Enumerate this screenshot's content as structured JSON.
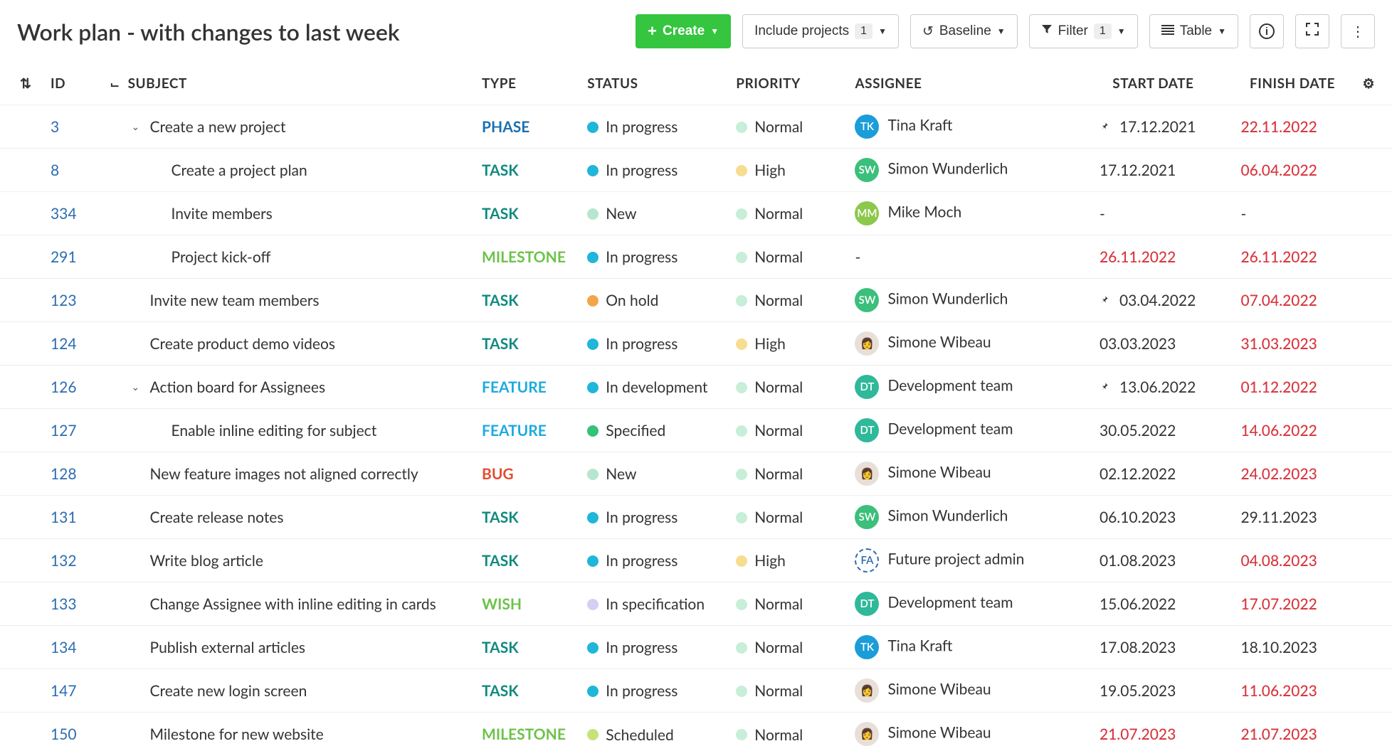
{
  "header": {
    "title": "Work plan - with changes to last week",
    "create_label": "Create",
    "include_projects_label": "Include projects",
    "include_projects_count": "1",
    "baseline_label": "Baseline",
    "filter_label": "Filter",
    "filter_count": "1",
    "view_label": "Table"
  },
  "columns": {
    "id": "ID",
    "subject": "SUBJECT",
    "type": "TYPE",
    "status": "STATUS",
    "priority": "PRIORITY",
    "assignee": "ASSIGNEE",
    "start": "START DATE",
    "finish": "FINISH DATE"
  },
  "type_colors": {
    "PHASE": "#1a6fb0",
    "TASK": "#0f8a7f",
    "MILESTONE": "#6cc24a",
    "FEATURE": "#1caadf",
    "BUG": "#e24c2f",
    "WISH": "#6cc24a"
  },
  "status_colors": {
    "In progress": "#1fb6d9",
    "New": "#b7e6cf",
    "On hold": "#f2a649",
    "In development": "#1fb6d9",
    "Specified": "#34c27a",
    "In specification": "#d5d0f2",
    "Scheduled": "#c8e27a"
  },
  "priority_colors": {
    "Normal": "#c7eed8",
    "High": "#f6dd8f"
  },
  "assignee_styles": {
    "Tina Kraft": {
      "initials": "TK",
      "bg": "#1a9dd9",
      "kind": "solid"
    },
    "Simon Wunderlich": {
      "initials": "SW",
      "bg": "#3bbf7a",
      "kind": "solid"
    },
    "Mike Moch": {
      "initials": "MM",
      "bg": "#8cc84b",
      "kind": "solid"
    },
    "Development team": {
      "initials": "DT",
      "bg": "#2fb89a",
      "kind": "solid"
    },
    "Simone Wibeau": {
      "initials": "👩",
      "bg": "#e8e0d8",
      "kind": "img"
    },
    "Future project admin": {
      "initials": "FA",
      "bg": "#ffffff",
      "kind": "dashed"
    }
  },
  "rows": [
    {
      "id": "3",
      "subject": "Create a new project",
      "indent": 1,
      "expand": true,
      "type": "PHASE",
      "status": "In progress",
      "priority": "Normal",
      "assignee": "Tina Kraft",
      "pin": true,
      "start": "17.12.2021",
      "finish": "22.11.2022",
      "finish_red": true
    },
    {
      "id": "8",
      "subject": "Create a project plan",
      "indent": 2,
      "expand": false,
      "type": "TASK",
      "status": "In progress",
      "priority": "High",
      "assignee": "Simon Wunderlich",
      "pin": false,
      "start": "17.12.2021",
      "finish": "06.04.2022",
      "finish_red": true
    },
    {
      "id": "334",
      "subject": "Invite members",
      "indent": 2,
      "expand": false,
      "type": "TASK",
      "status": "New",
      "priority": "Normal",
      "assignee": "Mike Moch",
      "pin": false,
      "start": "-",
      "finish": "-",
      "finish_red": false
    },
    {
      "id": "291",
      "subject": "Project kick-off",
      "indent": 2,
      "expand": false,
      "type": "MILESTONE",
      "status": "In progress",
      "priority": "Normal",
      "assignee": "-",
      "pin": false,
      "start": "26.11.2022",
      "start_red": true,
      "finish": "26.11.2022",
      "finish_red": true
    },
    {
      "id": "123",
      "subject": "Invite new team members",
      "indent": 1,
      "expand": false,
      "type": "TASK",
      "status": "On hold",
      "priority": "Normal",
      "assignee": "Simon Wunderlich",
      "pin": true,
      "start": "03.04.2022",
      "finish": "07.04.2022",
      "finish_red": true
    },
    {
      "id": "124",
      "subject": "Create product demo videos",
      "indent": 1,
      "expand": false,
      "type": "TASK",
      "status": "In progress",
      "priority": "High",
      "assignee": "Simone Wibeau",
      "pin": false,
      "start": "03.03.2023",
      "finish": "31.03.2023",
      "finish_red": true
    },
    {
      "id": "126",
      "subject": "Action board for Assignees",
      "indent": 1,
      "expand": true,
      "type": "FEATURE",
      "status": "In development",
      "priority": "Normal",
      "assignee": "Development team",
      "pin": true,
      "start": "13.06.2022",
      "finish": "01.12.2022",
      "finish_red": true
    },
    {
      "id": "127",
      "subject": "Enable inline editing for subject",
      "indent": 2,
      "expand": false,
      "type": "FEATURE",
      "status": "Specified",
      "priority": "Normal",
      "assignee": "Development team",
      "pin": false,
      "start": "30.05.2022",
      "finish": "14.06.2022",
      "finish_red": true
    },
    {
      "id": "128",
      "subject": "New feature images not aligned correctly",
      "indent": 1,
      "expand": false,
      "type": "BUG",
      "status": "New",
      "priority": "Normal",
      "assignee": "Simone Wibeau",
      "pin": false,
      "start": "02.12.2022",
      "finish": "24.02.2023",
      "finish_red": true
    },
    {
      "id": "131",
      "subject": "Create release notes",
      "indent": 1,
      "expand": false,
      "type": "TASK",
      "status": "In progress",
      "priority": "Normal",
      "assignee": "Simon Wunderlich",
      "pin": false,
      "start": "06.10.2023",
      "finish": "29.11.2023",
      "finish_red": false
    },
    {
      "id": "132",
      "subject": "Write blog article",
      "indent": 1,
      "expand": false,
      "type": "TASK",
      "status": "In progress",
      "priority": "High",
      "assignee": "Future project admin",
      "pin": false,
      "start": "01.08.2023",
      "finish": "04.08.2023",
      "finish_red": true
    },
    {
      "id": "133",
      "subject": "Change Assignee with inline editing in cards",
      "indent": 1,
      "expand": false,
      "type": "WISH",
      "status": "In specification",
      "priority": "Normal",
      "assignee": "Development team",
      "pin": false,
      "start": "15.06.2022",
      "finish": "17.07.2022",
      "finish_red": true
    },
    {
      "id": "134",
      "subject": "Publish external articles",
      "indent": 1,
      "expand": false,
      "type": "TASK",
      "status": "In progress",
      "priority": "Normal",
      "assignee": "Tina Kraft",
      "pin": false,
      "start": "17.08.2023",
      "finish": "18.10.2023",
      "finish_red": false
    },
    {
      "id": "147",
      "subject": "Create new login screen",
      "indent": 1,
      "expand": false,
      "type": "TASK",
      "status": "In progress",
      "priority": "Normal",
      "assignee": "Simone Wibeau",
      "pin": false,
      "start": "19.05.2023",
      "finish": "11.06.2023",
      "finish_red": true
    },
    {
      "id": "150",
      "subject": "Milestone for new website",
      "indent": 1,
      "expand": false,
      "type": "MILESTONE",
      "status": "Scheduled",
      "priority": "Normal",
      "assignee": "Simone Wibeau",
      "pin": false,
      "start": "21.07.2023",
      "start_red": true,
      "finish": "21.07.2023",
      "finish_red": true
    }
  ]
}
